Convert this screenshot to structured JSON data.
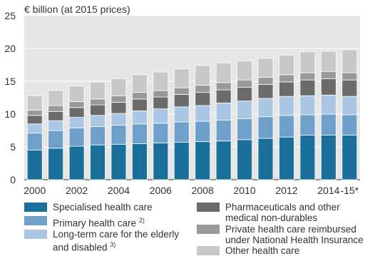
{
  "chart_data": {
    "type": "bar",
    "stacked": true,
    "ylabel": "€ billion (at 2015 prices)",
    "ylim": [
      0,
      25
    ],
    "yticks": [
      0,
      5,
      10,
      15,
      20,
      25
    ],
    "grid": true,
    "legend_position": "bottom",
    "categories": [
      "2000",
      "2001",
      "2002",
      "2003",
      "2004",
      "2005",
      "2006",
      "2007",
      "2008",
      "2009",
      "2010",
      "2011",
      "2012",
      "2013",
      "2014",
      "2015"
    ],
    "xtick_labels": [
      "2000",
      "",
      "2002",
      "",
      "2004",
      "",
      "2006",
      "",
      "2008",
      "",
      "2010",
      "",
      "2012",
      "",
      "2014",
      "-15*"
    ],
    "series": [
      {
        "name": "Specialised health care",
        "sup": "",
        "color": "#1a6f9a",
        "values": [
          4.5,
          4.8,
          5.1,
          5.3,
          5.4,
          5.5,
          5.6,
          5.7,
          5.8,
          5.9,
          6.1,
          6.3,
          6.5,
          6.8,
          6.8,
          6.8
        ]
      },
      {
        "name": "Primary health care",
        "sup": "2)",
        "color": "#6f9fcb",
        "values": [
          2.6,
          2.7,
          2.8,
          2.8,
          2.9,
          3.0,
          3.0,
          3.1,
          3.1,
          3.2,
          3.2,
          3.3,
          3.3,
          3.1,
          3.2,
          3.1
        ]
      },
      {
        "name": "Long-term care for the elderly and disabled",
        "sup": "3)",
        "color": "#a9c7e4",
        "values": [
          1.4,
          1.5,
          1.6,
          1.7,
          1.8,
          2.0,
          2.2,
          2.3,
          2.4,
          2.6,
          2.7,
          2.8,
          2.9,
          2.9,
          2.9,
          2.8
        ]
      },
      {
        "name": "Pharmaceuticals and other medical non-durables",
        "sup": "",
        "color": "#6b6b6b",
        "values": [
          1.3,
          1.4,
          1.5,
          1.6,
          1.7,
          1.8,
          1.8,
          1.9,
          2.0,
          2.0,
          2.1,
          2.1,
          2.2,
          2.4,
          2.5,
          2.5
        ]
      },
      {
        "name": "Private health care reimbursed under National Health Insurance",
        "sup": "",
        "color": "#999999",
        "values": [
          0.8,
          0.9,
          0.9,
          0.9,
          1.0,
          1.0,
          1.0,
          1.0,
          1.1,
          1.1,
          1.1,
          1.1,
          1.1,
          1.1,
          1.1,
          1.1
        ]
      },
      {
        "name": "Other health care",
        "sup": "",
        "color": "#c8c8c8",
        "values": [
          2.2,
          2.3,
          2.4,
          2.6,
          2.6,
          2.7,
          2.8,
          2.9,
          3.0,
          3.0,
          2.9,
          2.9,
          3.0,
          3.2,
          3.1,
          3.5
        ]
      }
    ]
  }
}
